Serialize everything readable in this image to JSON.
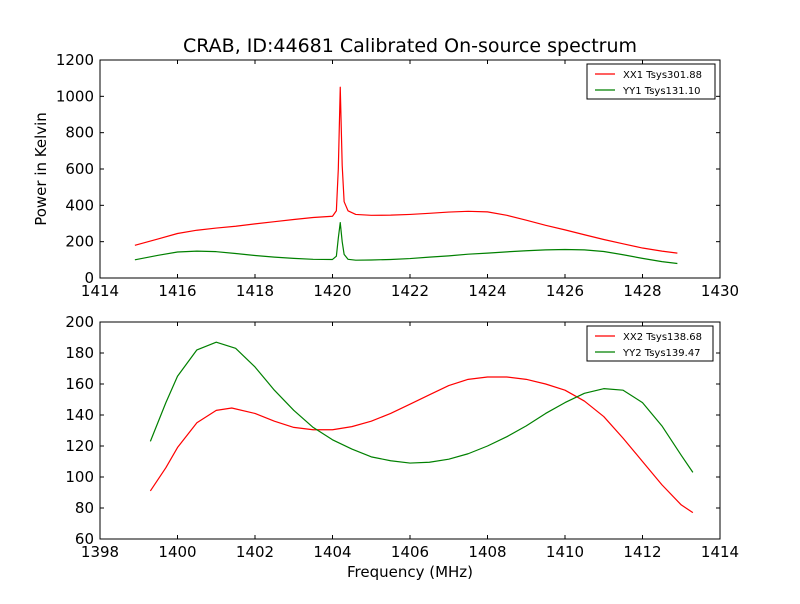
{
  "title": "CRAB, ID:44681 Calibrated On-source spectrum",
  "chart_data": [
    {
      "type": "line",
      "title": "CRAB, ID:44681 Calibrated On-source spectrum",
      "xlabel": "",
      "ylabel": "Power in Kelvin",
      "xlim": [
        1414,
        1430
      ],
      "ylim": [
        0,
        1200
      ],
      "xticks": [
        "1414",
        "1416",
        "1418",
        "1420",
        "1422",
        "1424",
        "1426",
        "1428",
        "1430"
      ],
      "yticks": [
        "0",
        "200",
        "400",
        "600",
        "800",
        "1000",
        "1200"
      ],
      "grid": false,
      "legend_position": "top-right",
      "series": [
        {
          "name": "XX1 Tsys301.88",
          "color": "#ff0000",
          "x": [
            1414.9,
            1415.5,
            1416.0,
            1416.5,
            1417.0,
            1417.5,
            1418.0,
            1418.5,
            1419.0,
            1419.5,
            1420.0,
            1420.1,
            1420.15,
            1420.2,
            1420.25,
            1420.3,
            1420.4,
            1420.6,
            1421.0,
            1421.5,
            1422.0,
            1422.5,
            1423.0,
            1423.5,
            1424.0,
            1424.5,
            1425.0,
            1425.5,
            1426.0,
            1426.5,
            1427.0,
            1427.5,
            1428.0,
            1428.5,
            1428.9
          ],
          "y": [
            180,
            215,
            245,
            263,
            275,
            285,
            298,
            310,
            322,
            333,
            340,
            370,
            600,
            1050,
            620,
            420,
            370,
            350,
            345,
            346,
            350,
            356,
            363,
            367,
            364,
            345,
            318,
            290,
            265,
            238,
            212,
            188,
            165,
            148,
            137
          ]
        },
        {
          "name": "YY1 Tsys131.10",
          "color": "#008000",
          "x": [
            1414.9,
            1415.5,
            1416.0,
            1416.5,
            1417.0,
            1417.5,
            1418.0,
            1418.5,
            1419.0,
            1419.5,
            1420.0,
            1420.1,
            1420.15,
            1420.2,
            1420.25,
            1420.3,
            1420.4,
            1420.6,
            1421.0,
            1421.5,
            1422.0,
            1422.5,
            1423.0,
            1423.5,
            1424.0,
            1424.5,
            1425.0,
            1425.5,
            1426.0,
            1426.5,
            1427.0,
            1427.5,
            1428.0,
            1428.5,
            1428.9
          ],
          "y": [
            100,
            125,
            143,
            148,
            145,
            135,
            124,
            115,
            108,
            103,
            102,
            120,
            220,
            305,
            200,
            130,
            103,
            98,
            99,
            102,
            107,
            115,
            122,
            131,
            137,
            144,
            150,
            155,
            157,
            155,
            146,
            128,
            108,
            90,
            80
          ]
        }
      ]
    },
    {
      "type": "line",
      "title": "",
      "xlabel": "Frequency (MHz)",
      "ylabel": "",
      "xlim": [
        1398,
        1414
      ],
      "ylim": [
        60,
        200
      ],
      "xticks": [
        "1398",
        "1400",
        "1402",
        "1404",
        "1406",
        "1408",
        "1410",
        "1412",
        "1414"
      ],
      "yticks": [
        "60",
        "80",
        "100",
        "120",
        "140",
        "160",
        "180",
        "200"
      ],
      "grid": false,
      "legend_position": "top-right",
      "series": [
        {
          "name": "XX2 Tsys138.68",
          "color": "#ff0000",
          "x": [
            1399.3,
            1399.7,
            1400.0,
            1400.5,
            1401.0,
            1401.4,
            1402.0,
            1402.5,
            1403.0,
            1403.5,
            1404.0,
            1404.5,
            1405.0,
            1405.5,
            1406.0,
            1406.5,
            1407.0,
            1407.5,
            1408.0,
            1408.5,
            1409.0,
            1409.5,
            1410.0,
            1410.5,
            1411.0,
            1411.5,
            1412.0,
            1412.5,
            1413.0,
            1413.3
          ],
          "y": [
            91,
            106,
            119,
            135,
            143,
            144.5,
            141,
            136,
            132,
            130.5,
            130.5,
            132.5,
            136,
            141,
            147,
            153,
            159,
            163,
            164.5,
            164.5,
            163,
            160,
            156,
            149,
            139,
            125,
            110,
            95,
            82,
            77
          ]
        },
        {
          "name": "YY2 Tsys139.47",
          "color": "#008000",
          "x": [
            1399.3,
            1399.7,
            1400.0,
            1400.5,
            1401.0,
            1401.5,
            1402.0,
            1402.5,
            1403.0,
            1403.5,
            1404.0,
            1404.5,
            1405.0,
            1405.5,
            1406.0,
            1406.5,
            1407.0,
            1407.5,
            1408.0,
            1408.5,
            1409.0,
            1409.5,
            1410.0,
            1410.5,
            1411.0,
            1411.5,
            1412.0,
            1412.5,
            1413.0,
            1413.3
          ],
          "y": [
            123,
            148,
            165,
            182,
            187,
            183,
            171,
            156,
            143,
            132,
            124,
            118,
            113,
            110.5,
            109,
            109.5,
            111.5,
            115,
            120,
            126,
            133,
            141,
            148,
            154,
            157,
            156,
            148,
            133,
            114,
            103
          ]
        }
      ]
    }
  ]
}
